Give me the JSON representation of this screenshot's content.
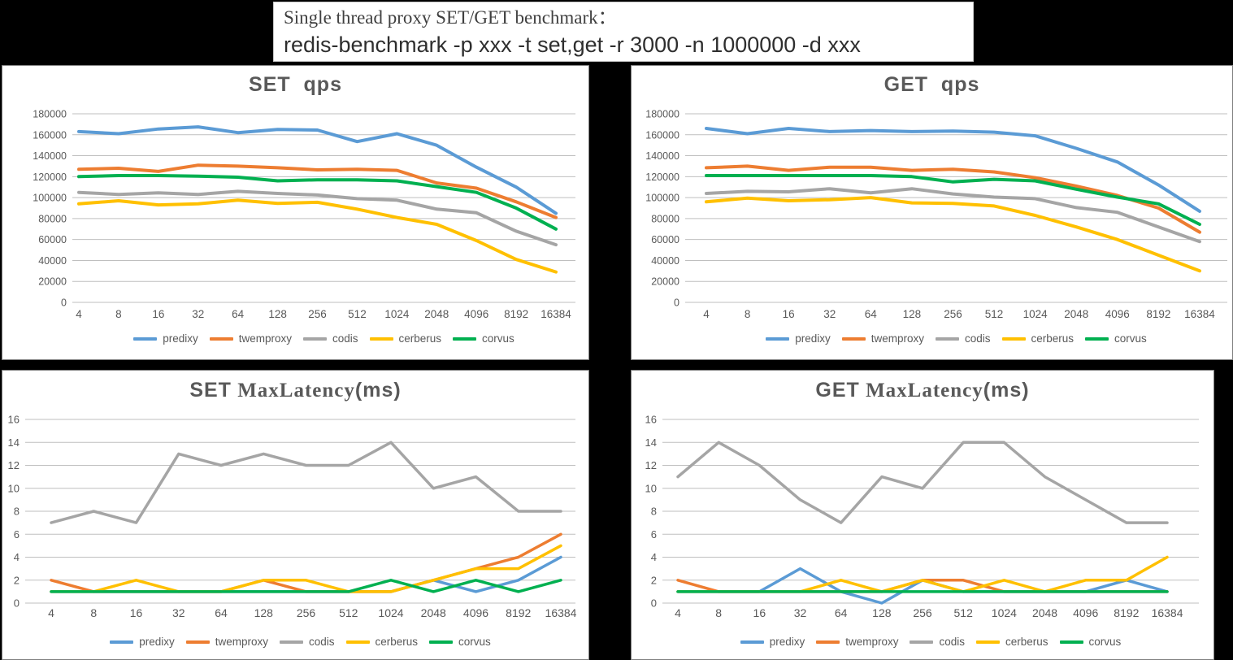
{
  "header": {
    "line1": "Single thread proxy SET/GET benchmark：",
    "line2": "redis-benchmark -p xxx -t set,get -r 3000 -n 1000000 -d xxx"
  },
  "palette": {
    "predixy": "#5B9BD5",
    "twemproxy": "#ED7D31",
    "codis": "#A5A5A5",
    "cerberus": "#FFC000",
    "corvus": "#00B050",
    "gridline": "#BFBFBF",
    "tick_text": "#595959",
    "title_text": "#595959"
  },
  "chart_data": [
    {
      "type": "line",
      "title": {
        "bold": "SET",
        "serif": "",
        "tail": "qps"
      },
      "categories": [
        "4",
        "8",
        "16",
        "32",
        "64",
        "128",
        "256",
        "512",
        "1024",
        "2048",
        "4096",
        "8192",
        "16384"
      ],
      "y_ticks": [
        "180000",
        "160000",
        "140000",
        "120000",
        "100000",
        "80000",
        "60000",
        "40000",
        "20000",
        "0"
      ],
      "ylim": [
        0,
        180000
      ],
      "grid": true,
      "legend_position": "bottom",
      "series": [
        {
          "name": "predixy",
          "color": "#5B9BD5",
          "values": [
            163000,
            161000,
            165500,
            167500,
            162000,
            165000,
            164500,
            153500,
            161000,
            150000,
            129000,
            110000,
            85000
          ]
        },
        {
          "name": "twemproxy",
          "color": "#ED7D31",
          "values": [
            127000,
            128000,
            125000,
            131000,
            130000,
            128500,
            126500,
            127000,
            126000,
            114000,
            109000,
            96000,
            81000
          ]
        },
        {
          "name": "codis",
          "color": "#A5A5A5",
          "values": [
            105000,
            103000,
            104500,
            103000,
            106000,
            104000,
            102500,
            99000,
            97500,
            89000,
            85500,
            68000,
            55000
          ]
        },
        {
          "name": "cerberus",
          "color": "#FFC000",
          "values": [
            94000,
            97000,
            93000,
            94000,
            97500,
            94500,
            95500,
            89000,
            81000,
            74500,
            59000,
            41000,
            29000
          ]
        },
        {
          "name": "corvus",
          "color": "#00B050",
          "values": [
            120000,
            121000,
            121000,
            120500,
            119500,
            116000,
            117000,
            117000,
            116000,
            110500,
            105000,
            90000,
            70000
          ]
        }
      ]
    },
    {
      "type": "line",
      "title": {
        "bold": "GET",
        "serif": "",
        "tail": "qps"
      },
      "categories": [
        "4",
        "8",
        "16",
        "32",
        "64",
        "128",
        "256",
        "512",
        "1024",
        "2048",
        "4096",
        "8192",
        "16384"
      ],
      "y_ticks": [
        "180000",
        "160000",
        "140000",
        "120000",
        "100000",
        "80000",
        "60000",
        "40000",
        "20000",
        "0"
      ],
      "ylim": [
        0,
        180000
      ],
      "grid": true,
      "legend_position": "bottom",
      "series": [
        {
          "name": "predixy",
          "color": "#5B9BD5",
          "values": [
            166000,
            161000,
            166000,
            163000,
            164000,
            163000,
            163500,
            162500,
            159000,
            147000,
            134000,
            112000,
            87000
          ]
        },
        {
          "name": "twemproxy",
          "color": "#ED7D31",
          "values": [
            128500,
            130000,
            126000,
            129000,
            129000,
            126000,
            127000,
            124500,
            119000,
            111000,
            102000,
            90000,
            67000
          ]
        },
        {
          "name": "codis",
          "color": "#A5A5A5",
          "values": [
            104000,
            106000,
            105500,
            108500,
            104500,
            108500,
            103500,
            100500,
            99000,
            90500,
            86000,
            72000,
            58000
          ]
        },
        {
          "name": "cerberus",
          "color": "#FFC000",
          "values": [
            96000,
            99500,
            97000,
            98000,
            100000,
            95000,
            94500,
            92000,
            83000,
            72000,
            60000,
            45000,
            30000
          ]
        },
        {
          "name": "corvus",
          "color": "#00B050",
          "values": [
            121000,
            121000,
            121000,
            121000,
            121000,
            120000,
            115000,
            117500,
            116000,
            108000,
            100500,
            94000,
            74500
          ]
        }
      ]
    },
    {
      "type": "line",
      "title": {
        "bold": "SET",
        "serif": "MaxLatency",
        "tail": "(ms)"
      },
      "categories": [
        "4",
        "8",
        "16",
        "32",
        "64",
        "128",
        "256",
        "512",
        "1024",
        "2048",
        "4096",
        "8192",
        "16384"
      ],
      "y_ticks": [
        "16",
        "14",
        "12",
        "10",
        "8",
        "6",
        "4",
        "2",
        "0"
      ],
      "ylim": [
        0,
        16
      ],
      "grid": true,
      "legend_position": "bottom",
      "series": [
        {
          "name": "predixy",
          "color": "#5B9BD5",
          "values": [
            1,
            1,
            1,
            1,
            1,
            1,
            1,
            1,
            1,
            2,
            1,
            2,
            4
          ]
        },
        {
          "name": "twemproxy",
          "color": "#ED7D31",
          "values": [
            2,
            1,
            1,
            1,
            1,
            2,
            1,
            1,
            1,
            2,
            3,
            4,
            6
          ]
        },
        {
          "name": "codis",
          "color": "#A5A5A5",
          "values": [
            7,
            8,
            7,
            13,
            12,
            13,
            12,
            12,
            14,
            10,
            11,
            8,
            8
          ]
        },
        {
          "name": "cerberus",
          "color": "#FFC000",
          "values": [
            1,
            1,
            2,
            1,
            1,
            2,
            2,
            1,
            1,
            2,
            3,
            3,
            5
          ]
        },
        {
          "name": "corvus",
          "color": "#00B050",
          "values": [
            1,
            1,
            1,
            1,
            1,
            1,
            1,
            1,
            2,
            1,
            2,
            1,
            2
          ]
        }
      ]
    },
    {
      "type": "line",
      "title": {
        "bold": "GET",
        "serif": "MaxLatency",
        "tail": "(ms)"
      },
      "categories": [
        "4",
        "8",
        "16",
        "32",
        "64",
        "128",
        "256",
        "512",
        "1024",
        "2048",
        "4096",
        "8192",
        "16384"
      ],
      "y_ticks": [
        "16",
        "14",
        "12",
        "10",
        "8",
        "6",
        "4",
        "2",
        "0"
      ],
      "ylim": [
        0,
        16
      ],
      "grid": true,
      "legend_position": "bottom",
      "series": [
        {
          "name": "predixy",
          "color": "#5B9BD5",
          "values": [
            1,
            1,
            1,
            3,
            1,
            0,
            2,
            1,
            1,
            1,
            1,
            2,
            1
          ]
        },
        {
          "name": "twemproxy",
          "color": "#ED7D31",
          "values": [
            2,
            1,
            1,
            1,
            1,
            1,
            2,
            2,
            1,
            1,
            1,
            1,
            1
          ]
        },
        {
          "name": "codis",
          "color": "#A5A5A5",
          "values": [
            11,
            14,
            12,
            9,
            7,
            11,
            10,
            14,
            14,
            11,
            9,
            7,
            7
          ]
        },
        {
          "name": "cerberus",
          "color": "#FFC000",
          "values": [
            1,
            1,
            1,
            1,
            2,
            1,
            2,
            1,
            2,
            1,
            2,
            2,
            4
          ]
        },
        {
          "name": "corvus",
          "color": "#00B050",
          "values": [
            1,
            1,
            1,
            1,
            1,
            1,
            1,
            1,
            1,
            1,
            1,
            1,
            1
          ]
        }
      ]
    }
  ]
}
